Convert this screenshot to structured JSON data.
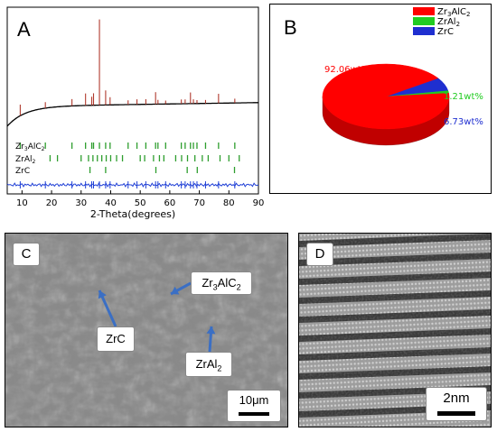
{
  "panel_a": {
    "label": "A"
  },
  "panel_b": {
    "label": "B"
  },
  "panel_c": {
    "label": "C",
    "annotations": [
      "Zr3AlC2",
      "ZrC",
      "ZrAl2"
    ],
    "scale_bar": "10μm"
  },
  "panel_d": {
    "label": "D",
    "scale_bar": "2nm"
  },
  "colors": {
    "measured_profile": "#000000",
    "calculated_peaks": "#b03a2e",
    "difference_curve": "#1f3fd6",
    "bragg_ticks": "#2e9e2e",
    "pie_zr3alc2": "#ff0000",
    "pie_zral2": "#22cc22",
    "pie_zrc": "#1f2fd0",
    "annotation_arrow": "#3b6fc4"
  },
  "chart_data": [
    {
      "type": "line",
      "panel": "A",
      "title": "",
      "xlabel": "2-Theta(degrees)",
      "ylabel": "",
      "xlim": [
        5,
        90
      ],
      "xticks": [
        10,
        20,
        30,
        40,
        50,
        60,
        70,
        80,
        90
      ],
      "grid": false,
      "series": [
        {
          "name": "Zr3AlC2",
          "peaks_x": [
            9.4,
            17.9,
            26.9,
            31.5,
            33.6,
            34.2,
            36.2,
            38.3,
            39.8,
            45.9,
            48.9,
            51.9,
            55.2,
            56.0,
            58.6,
            63.9,
            65.2,
            67.0,
            68.0,
            69.2,
            72.1,
            76.5,
            82.0
          ],
          "peaks_rel_intensity": [
            13,
            7,
            8,
            14,
            10,
            14,
            100,
            17,
            9,
            5,
            6,
            6,
            14,
            5,
            4,
            5,
            5,
            13,
            5,
            4,
            4,
            11,
            5
          ]
        },
        {
          "name": "ZrAl2",
          "ticks_x": [
            19.5,
            22.0,
            30.0,
            32.5,
            34.0,
            35.5,
            37.0,
            38.5,
            40.0,
            42.0,
            44.0,
            50.0,
            51.5,
            54.5,
            56.5,
            58.0,
            62.0,
            64.0,
            66.0,
            68.5,
            71.0,
            73.0,
            77.0,
            80.0,
            83.5
          ]
        },
        {
          "name": "ZrC",
          "ticks_x": [
            33.0,
            38.3,
            55.3,
            65.9,
            69.3,
            81.9
          ]
        }
      ],
      "tick_labels_legend": [
        "Zr3AlC2",
        "ZrAl2",
        "ZrC"
      ]
    },
    {
      "type": "pie",
      "panel": "B",
      "labels": [
        "Zr3AlC2",
        "ZrAl2",
        "ZrC"
      ],
      "values": [
        92.06,
        1.21,
        6.73
      ],
      "value_labels": [
        "92.06wt%",
        "1.21wt%",
        "6.73wt%"
      ],
      "legend_position": "top-right"
    }
  ]
}
